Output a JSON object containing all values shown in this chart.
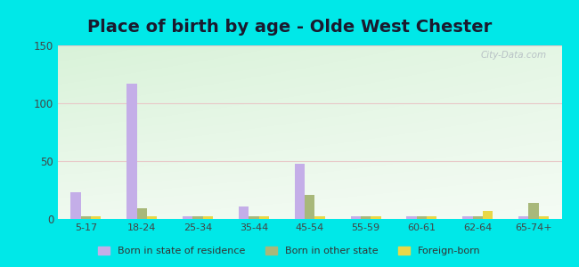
{
  "title": "Place of birth by age - Olde West Chester",
  "categories": [
    "5-17",
    "18-24",
    "25-34",
    "35-44",
    "45-54",
    "55-59",
    "60-61",
    "62-64",
    "65-74+"
  ],
  "born_in_state": [
    23,
    117,
    2,
    11,
    48,
    2,
    2,
    2,
    2
  ],
  "born_other_state": [
    2,
    9,
    2,
    2,
    21,
    2,
    2,
    2,
    14
  ],
  "foreign_born": [
    2,
    2,
    2,
    2,
    2,
    2,
    2,
    7,
    2
  ],
  "bar_color_state": "#c4aee8",
  "bar_color_other": "#a8b87a",
  "bar_color_foreign": "#e8d848",
  "ylim": [
    0,
    150
  ],
  "yticks": [
    0,
    50,
    100,
    150
  ],
  "outer_bg": "#00e8e8",
  "title_fontsize": 14,
  "legend_labels": [
    "Born in state of residence",
    "Born in other state",
    "Foreign-born"
  ],
  "watermark": "City-Data.com"
}
